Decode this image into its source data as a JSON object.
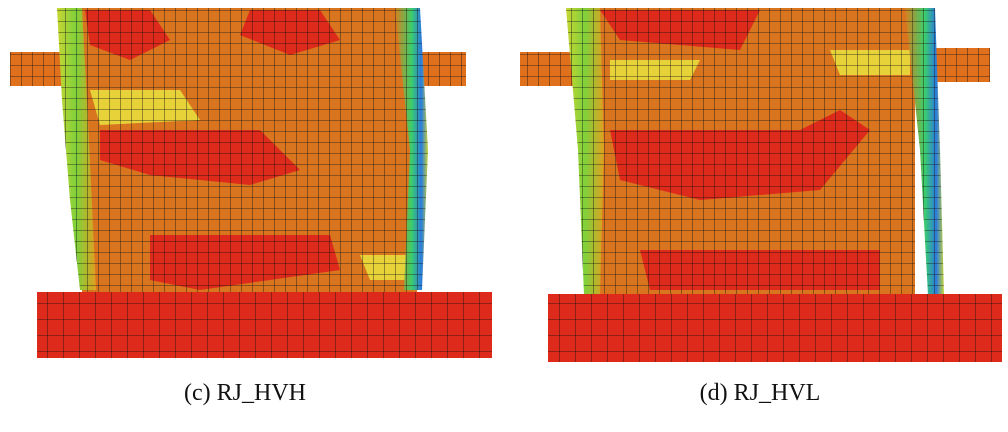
{
  "figures": [
    {
      "caption": "(c) RJ_HVH"
    },
    {
      "caption": "(d) RJ_HVL"
    }
  ]
}
